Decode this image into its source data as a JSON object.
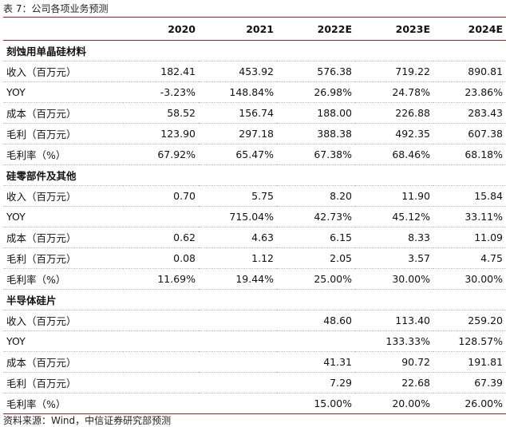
{
  "caption": "表 7：公司各项业务预测",
  "source": "资料来源：Wind，中信证券研究部预测",
  "columns": [
    "2020",
    "2021",
    "2022E",
    "2023E",
    "2024E"
  ],
  "sections": [
    {
      "title": "刻蚀用单晶硅材料",
      "rows": [
        {
          "label": "收入（百万元）",
          "values": [
            "182.41",
            "453.92",
            "576.38",
            "719.22",
            "890.81"
          ]
        },
        {
          "label": "YOY",
          "values": [
            "-3.23%",
            "148.84%",
            "26.98%",
            "24.78%",
            "23.86%"
          ]
        },
        {
          "label": "成本（百万元）",
          "values": [
            "58.52",
            "156.74",
            "188.00",
            "226.88",
            "283.43"
          ]
        },
        {
          "label": "毛利（百万元）",
          "values": [
            "123.90",
            "297.18",
            "388.38",
            "492.35",
            "607.38"
          ]
        },
        {
          "label": "毛利率（%）",
          "values": [
            "67.92%",
            "65.47%",
            "67.38%",
            "68.46%",
            "68.18%"
          ]
        }
      ]
    },
    {
      "title": "硅零部件及其他",
      "rows": [
        {
          "label": "收入（百万元）",
          "values": [
            "0.70",
            "5.75",
            "8.20",
            "11.90",
            "15.84"
          ]
        },
        {
          "label": "YOY",
          "values": [
            "",
            "715.04%",
            "42.73%",
            "45.12%",
            "33.11%"
          ]
        },
        {
          "label": "成本（百万元）",
          "values": [
            "0.62",
            "4.63",
            "6.15",
            "8.33",
            "11.09"
          ]
        },
        {
          "label": "毛利（百万元）",
          "values": [
            "0.08",
            "1.12",
            "2.05",
            "3.57",
            "4.75"
          ]
        },
        {
          "label": "毛利率（%）",
          "values": [
            "11.69%",
            "19.44%",
            "25.00%",
            "30.00%",
            "30.00%"
          ]
        }
      ]
    },
    {
      "title": "半导体硅片",
      "rows": [
        {
          "label": "收入（百万元）",
          "values": [
            "",
            "",
            "48.60",
            "113.40",
            "259.20"
          ]
        },
        {
          "label": "YOY",
          "values": [
            "",
            "",
            "",
            "133.33%",
            "128.57%"
          ]
        },
        {
          "label": "成本（百万元）",
          "values": [
            "",
            "",
            "41.31",
            "90.72",
            "191.81"
          ]
        },
        {
          "label": "毛利（百万元）",
          "values": [
            "",
            "",
            "7.29",
            "22.68",
            "67.39"
          ]
        },
        {
          "label": "毛利率（%）",
          "values": [
            "",
            "",
            "15.00%",
            "20.00%",
            "26.00%"
          ]
        }
      ]
    }
  ]
}
